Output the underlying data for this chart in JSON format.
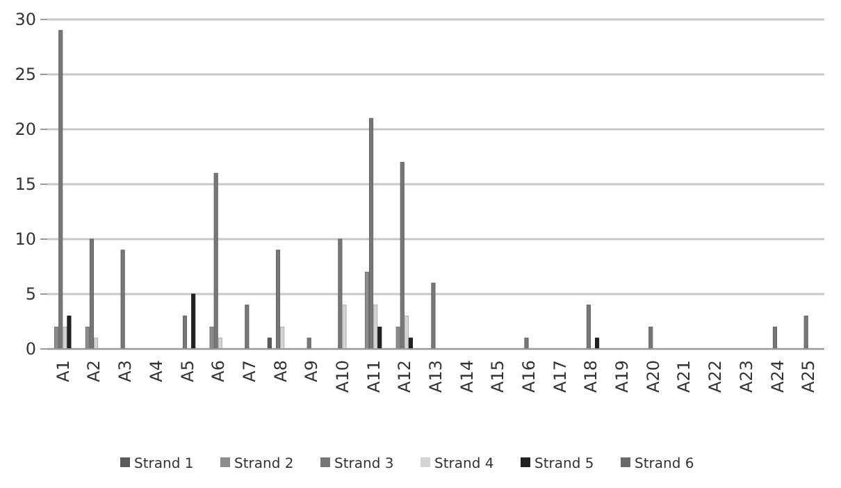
{
  "chart_data": {
    "type": "bar",
    "categories": [
      "A1",
      "A2",
      "A3",
      "A4",
      "A5",
      "A6",
      "A7",
      "A8",
      "A9",
      "A10",
      "A11",
      "A12",
      "A13",
      "A14",
      "A15",
      "A16",
      "A17",
      "A18",
      "A19",
      "A20",
      "A21",
      "A22",
      "A23",
      "A24",
      "A25"
    ],
    "series": [
      {
        "name": "Strand 1",
        "color": "#5a5a5a",
        "values": [
          0,
          0,
          0,
          0,
          0,
          0,
          0,
          1,
          0,
          0,
          0,
          0,
          0,
          0,
          0,
          0,
          0,
          0,
          0,
          0,
          0,
          0,
          0,
          0,
          0
        ]
      },
      {
        "name": "Strand 2",
        "color": "#8c8c8c",
        "values": [
          2,
          2,
          0,
          0,
          0,
          2,
          0,
          0,
          0,
          0,
          7,
          2,
          0,
          0,
          0,
          0,
          0,
          0,
          0,
          0,
          0,
          0,
          0,
          0,
          0
        ]
      },
      {
        "name": "Strand 3",
        "color": "#777777",
        "values": [
          29,
          10,
          9,
          0,
          3,
          16,
          4,
          9,
          1,
          10,
          21,
          17,
          6,
          0,
          0,
          1,
          0,
          4,
          0,
          2,
          0,
          0,
          0,
          2,
          3
        ]
      },
      {
        "name": "Strand 4",
        "color": "#d4d4d4",
        "values": [
          2,
          1,
          0,
          0,
          0,
          1,
          0,
          2,
          0,
          4,
          4,
          3,
          0,
          0,
          0,
          0,
          0,
          0,
          0,
          0,
          0,
          0,
          0,
          0,
          0
        ]
      },
      {
        "name": "Strand 5",
        "color": "#222222",
        "values": [
          3,
          0,
          0,
          0,
          5,
          0,
          0,
          0,
          0,
          0,
          2,
          1,
          0,
          0,
          0,
          0,
          0,
          1,
          0,
          0,
          0,
          0,
          0,
          0,
          0
        ]
      },
      {
        "name": "Strand 6",
        "color": "#6a6a6a",
        "values": [
          0,
          0,
          0,
          0,
          0,
          0,
          0,
          0,
          0,
          0,
          0,
          0,
          0,
          0,
          0,
          0,
          0,
          0,
          0,
          0,
          0,
          0,
          0,
          0,
          0
        ]
      }
    ],
    "ylim": [
      0,
      30
    ],
    "yticks": [
      0,
      5,
      10,
      15,
      20,
      25,
      30
    ],
    "grid": "y",
    "legend": "bottom"
  }
}
